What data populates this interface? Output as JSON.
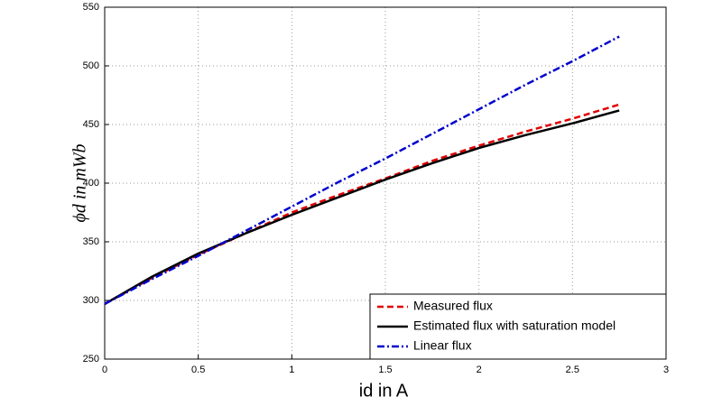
{
  "chart_data": {
    "type": "line",
    "x_label": "id in A",
    "y_label": "ϕd in mWb",
    "x": [
      0,
      0.25,
      0.5,
      0.75,
      1,
      1.25,
      1.5,
      1.75,
      2,
      2.25,
      2.5,
      2.75
    ],
    "series": [
      {
        "name": "Measured flux",
        "color": "#e00000",
        "dash": "dashed",
        "values": [
          297,
          319,
          339,
          357,
          375,
          390,
          404,
          419,
          432,
          444,
          455,
          467
        ]
      },
      {
        "name": "Estimated flux with saturation model",
        "color": "#000000",
        "dash": "solid",
        "values": [
          297,
          320,
          340,
          357,
          373,
          388,
          403,
          417,
          430,
          441,
          451,
          462
        ]
      },
      {
        "name": "Linear flux",
        "color": "#0000cc",
        "dash": "dashdot",
        "values": [
          297,
          318,
          338,
          359,
          380,
          401,
          421,
          442,
          463,
          484,
          504,
          525
        ]
      }
    ],
    "xlim": [
      0,
      3
    ],
    "xticks": [
      0,
      0.5,
      1,
      1.5,
      2,
      2.5,
      3
    ],
    "ylim": [
      250,
      550
    ],
    "yticks": [
      250,
      300,
      350,
      400,
      450,
      500,
      550
    ],
    "grid": true,
    "legend": "lower right"
  }
}
